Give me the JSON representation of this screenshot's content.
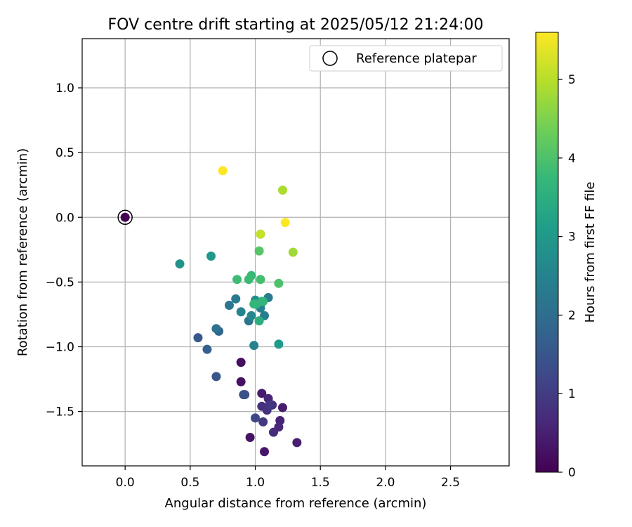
{
  "chart_data": {
    "type": "scatter",
    "title": "FOV centre drift starting at 2025/05/12 21:24:00",
    "xlabel": "Angular distance from reference (arcmin)",
    "ylabel": "Rotation from reference (arcmin)",
    "xlim": [
      -0.33,
      2.95
    ],
    "ylim": [
      -1.92,
      1.38
    ],
    "xticks": [
      0.0,
      0.5,
      1.0,
      1.5,
      2.0,
      2.5
    ],
    "xtick_labels": [
      "0.0",
      "0.5",
      "1.0",
      "1.5",
      "2.0",
      "2.5"
    ],
    "yticks": [
      -1.5,
      -1.0,
      -0.5,
      0.0,
      0.5,
      1.0
    ],
    "ytick_labels": [
      "−1.5",
      "−1.0",
      "−0.5",
      "0.0",
      "0.5",
      "1.0"
    ],
    "grid": true,
    "legend": {
      "position": "top-right",
      "entries": [
        "Reference platepar"
      ]
    },
    "reference_point": {
      "x": 0.0,
      "y": 0.0
    },
    "colorbar": {
      "label": "Hours from first FF file",
      "colormap": "viridis",
      "range": [
        0,
        5.6
      ],
      "ticks": [
        0,
        1,
        2,
        3,
        4,
        5
      ],
      "tick_labels": [
        "0",
        "1",
        "2",
        "3",
        "4",
        "5"
      ]
    },
    "series": [
      {
        "hours": [
          0.0,
          0.2,
          0.25,
          0.3,
          0.35,
          0.4,
          0.45,
          0.5,
          0.55,
          0.6,
          0.65,
          0.7,
          0.75,
          0.8,
          0.85,
          0.9,
          0.95,
          1.2,
          1.3,
          1.4,
          1.5,
          1.55,
          1.7,
          1.8,
          2.1,
          2.15,
          2.2,
          2.3,
          2.35,
          2.4,
          2.45,
          2.5,
          2.55,
          2.6,
          2.75,
          2.85,
          3.0,
          3.05,
          3.5,
          3.55,
          3.6,
          3.65,
          3.7,
          3.75,
          3.8,
          3.85,
          3.9,
          4.0,
          4.1,
          4.3,
          4.8,
          4.9,
          5.1,
          5.6,
          5.6
        ],
        "x": [
          0.0,
          0.89,
          0.89,
          0.96,
          1.07,
          1.05,
          1.21,
          1.32,
          1.19,
          1.1,
          1.18,
          1.14,
          1.13,
          1.05,
          1.09,
          1.11,
          1.06,
          1.0,
          0.91,
          0.92,
          0.7,
          0.56,
          0.63,
          0.72,
          0.7,
          0.95,
          0.8,
          0.85,
          1.1,
          1.07,
          1.04,
          0.99,
          0.89,
          0.97,
          1.0,
          0.42,
          0.66,
          1.18,
          1.03,
          1.01,
          1.06,
          1.05,
          0.99,
          0.97,
          0.95,
          0.86,
          1.04,
          1.18,
          1.03,
          1.04,
          1.29,
          1.21,
          1.04,
          0.75,
          1.23
        ],
        "y": [
          0.0,
          -1.12,
          -1.27,
          -1.7,
          -1.81,
          -1.36,
          -1.47,
          -1.74,
          -1.57,
          -1.4,
          -1.62,
          -1.66,
          -1.45,
          -1.46,
          -1.49,
          -1.45,
          -1.58,
          -1.55,
          -1.37,
          -1.37,
          -1.23,
          -0.93,
          -1.02,
          -0.88,
          -0.86,
          -0.8,
          -0.68,
          -0.63,
          -0.62,
          -0.76,
          -0.7,
          -0.99,
          -0.73,
          -0.76,
          -0.64,
          -0.36,
          -0.3,
          -0.98,
          -0.8,
          -0.67,
          -0.65,
          -0.65,
          -0.67,
          -0.45,
          -0.48,
          -0.48,
          -0.48,
          -0.51,
          -0.26,
          -0.13,
          -0.27,
          0.21,
          -0.13,
          0.36,
          -0.04
        ]
      }
    ]
  }
}
